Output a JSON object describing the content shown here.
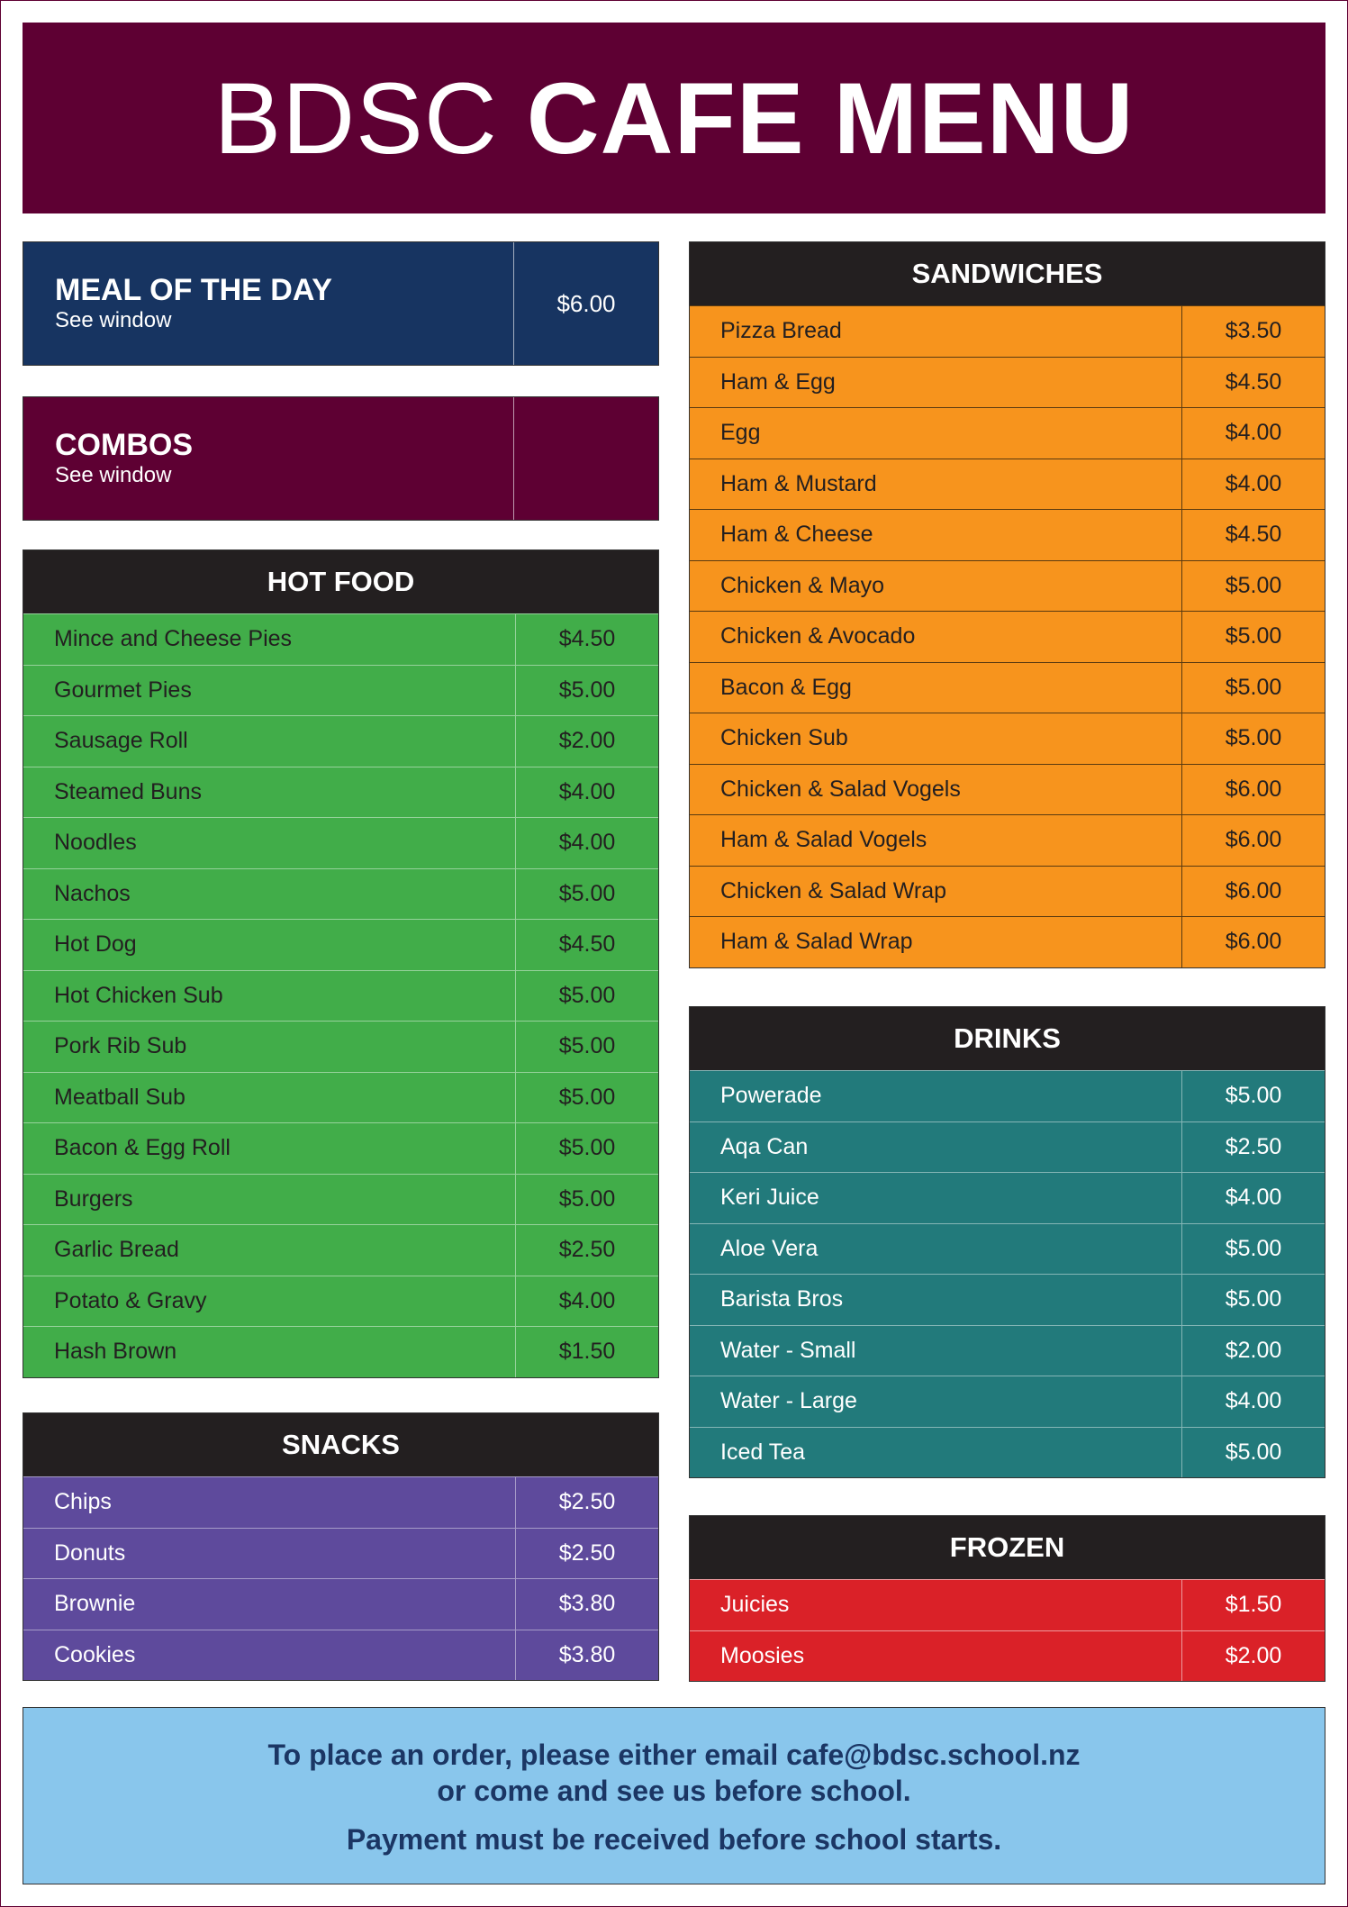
{
  "colors": {
    "banner": "#5e0033",
    "meal_of_day": "#173461",
    "combos": "#5e0033",
    "section_header": "#231f20",
    "hot_food": "#41ad49",
    "sandwiches": "#f7941d",
    "drinks": "#227a7b",
    "snacks": "#5e4a9c",
    "frozen": "#da2128",
    "footer": "#89c6ec",
    "footer_text": "#1b3664"
  },
  "banner": {
    "light": "BDSC",
    "bold": "CAFE MENU"
  },
  "meal_of_day": {
    "title": "MEAL OF THE DAY",
    "subtitle": "See window",
    "price": "$6.00"
  },
  "combos": {
    "title": "COMBOS",
    "subtitle": "See window",
    "price": ""
  },
  "hot_food": {
    "title": "HOT FOOD",
    "items": [
      {
        "name": "Mince and Cheese Pies",
        "price": "$4.50"
      },
      {
        "name": "Gourmet Pies",
        "price": "$5.00"
      },
      {
        "name": "Sausage Roll",
        "price": "$2.00"
      },
      {
        "name": "Steamed Buns",
        "price": "$4.00"
      },
      {
        "name": "Noodles",
        "price": "$4.00"
      },
      {
        "name": "Nachos",
        "price": "$5.00"
      },
      {
        "name": "Hot Dog",
        "price": "$4.50"
      },
      {
        "name": "Hot Chicken Sub",
        "price": "$5.00"
      },
      {
        "name": "Pork Rib Sub",
        "price": "$5.00"
      },
      {
        "name": "Meatball Sub",
        "price": "$5.00"
      },
      {
        "name": "Bacon & Egg Roll",
        "price": "$5.00"
      },
      {
        "name": "Burgers",
        "price": "$5.00"
      },
      {
        "name": "Garlic Bread",
        "price": "$2.50"
      },
      {
        "name": "Potato & Gravy",
        "price": "$4.00"
      },
      {
        "name": "Hash Brown",
        "price": "$1.50"
      }
    ]
  },
  "snacks": {
    "title": "SNACKS",
    "items": [
      {
        "name": "Chips",
        "price": "$2.50"
      },
      {
        "name": "Donuts",
        "price": "$2.50"
      },
      {
        "name": "Brownie",
        "price": "$3.80"
      },
      {
        "name": "Cookies",
        "price": "$3.80"
      }
    ]
  },
  "sandwiches": {
    "title": "SANDWICHES",
    "items": [
      {
        "name": "Pizza Bread",
        "price": "$3.50"
      },
      {
        "name": "Ham & Egg",
        "price": "$4.50"
      },
      {
        "name": "Egg",
        "price": "$4.00"
      },
      {
        "name": "Ham & Mustard",
        "price": "$4.00"
      },
      {
        "name": "Ham & Cheese",
        "price": "$4.50"
      },
      {
        "name": "Chicken & Mayo",
        "price": "$5.00"
      },
      {
        "name": "Chicken & Avocado",
        "price": "$5.00"
      },
      {
        "name": "Bacon & Egg",
        "price": "$5.00"
      },
      {
        "name": "Chicken Sub",
        "price": "$5.00"
      },
      {
        "name": "Chicken & Salad Vogels",
        "price": "$6.00"
      },
      {
        "name": "Ham & Salad Vogels",
        "price": "$6.00"
      },
      {
        "name": "Chicken & Salad Wrap",
        "price": "$6.00"
      },
      {
        "name": "Ham & Salad Wrap",
        "price": "$6.00"
      }
    ]
  },
  "drinks": {
    "title": "DRINKS",
    "items": [
      {
        "name": "Powerade",
        "price": "$5.00"
      },
      {
        "name": "Aqa Can",
        "price": "$2.50"
      },
      {
        "name": "Keri Juice",
        "price": "$4.00"
      },
      {
        "name": "Aloe Vera",
        "price": "$5.00"
      },
      {
        "name": "Barista Bros",
        "price": "$5.00"
      },
      {
        "name": "Water - Small",
        "price": "$2.00"
      },
      {
        "name": "Water - Large",
        "price": "$4.00"
      },
      {
        "name": "Iced Tea",
        "price": "$5.00"
      }
    ]
  },
  "frozen": {
    "title": "FROZEN",
    "items": [
      {
        "name": "Juicies",
        "price": "$1.50"
      },
      {
        "name": "Moosies",
        "price": "$2.00"
      }
    ]
  },
  "footer": {
    "line1": "To place an order, please either email cafe@bdsc.school.nz",
    "line2": "or come and see us before school.",
    "line3": "Payment must be received before school starts."
  }
}
